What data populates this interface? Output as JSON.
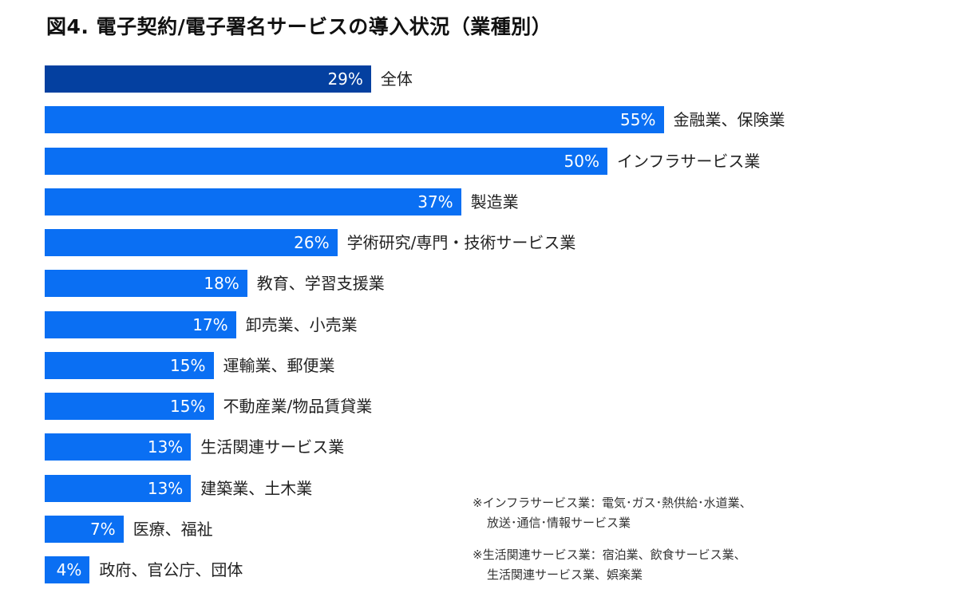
{
  "chart_data": {
    "type": "bar",
    "orientation": "horizontal",
    "title": "図4. 電子契約/電子署名サービスの導入状況（業種別）",
    "categories": [
      "全体",
      "金融業、保険業",
      "インフラサービス業",
      "製造業",
      "学術研究/専門・技術サービス業",
      "教育、学習支援業",
      "卸売業、小売業",
      "運輸業、郵便業",
      "不動産業/物品賃貸業",
      "生活関連サービス業",
      "建築業、土木業",
      "医療、福祉",
      "政府、官公庁、団体"
    ],
    "values": [
      29,
      55,
      50,
      37,
      26,
      18,
      17,
      15,
      15,
      13,
      13,
      7,
      4
    ],
    "unit": "%",
    "xlim": [
      0,
      60
    ],
    "grid": false,
    "colors": {
      "total": "#0440a0",
      "industry": "#0a6ff3"
    },
    "notes": [
      {
        "line1": "※インフラサービス業：電気･ガス･熱供給･水道業、",
        "line2": "放送･通信･情報サービス業"
      },
      {
        "line1": "※生活関連サービス業：宿泊業、飲食サービス業、",
        "line2": "生活関連サービス業、娯楽業"
      }
    ]
  }
}
